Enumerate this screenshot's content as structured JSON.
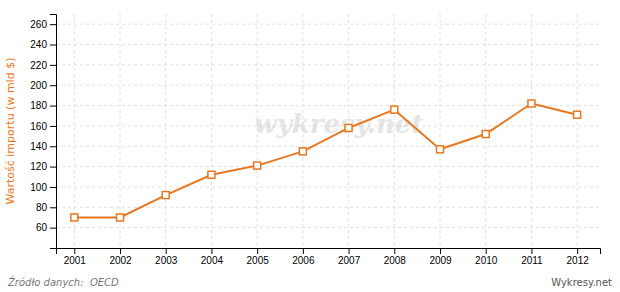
{
  "chart_data": {
    "type": "line",
    "ylabel": "Wartość importu (w mld $)",
    "x": [
      2001,
      2002,
      2003,
      2004,
      2005,
      2006,
      2007,
      2008,
      2009,
      2010,
      2011,
      2012
    ],
    "values": [
      70,
      70,
      92,
      112,
      121,
      135,
      158,
      176,
      137,
      152,
      182,
      171
    ],
    "color": "#E87820",
    "marker": "square",
    "grid": true,
    "xlim": [
      2000.6,
      2012.5
    ],
    "xticks": [
      2001,
      2002,
      2003,
      2004,
      2005,
      2006,
      2007,
      2008,
      2009,
      2010,
      2011,
      2012
    ],
    "ylim": [
      40,
      270
    ],
    "yticks": [
      60,
      80,
      100,
      120,
      140,
      160,
      180,
      200,
      220,
      240,
      260
    ],
    "annotations": [
      "Źródło danych:  OECD",
      "wykresy.net",
      "Wykresy.net"
    ]
  }
}
